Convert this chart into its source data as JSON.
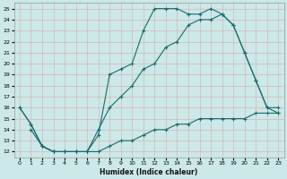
{
  "xlabel": "Humidex (Indice chaleur)",
  "bg_color": "#cce8e8",
  "grid_color": "#b8d8d8",
  "line_color": "#1a6b6b",
  "xlim": [
    -0.5,
    23.5
  ],
  "ylim": [
    11.5,
    25.5
  ],
  "yticks": [
    12,
    13,
    14,
    15,
    16,
    17,
    18,
    19,
    20,
    21,
    22,
    23,
    24,
    25
  ],
  "xticks": [
    0,
    1,
    2,
    3,
    4,
    5,
    6,
    7,
    8,
    9,
    10,
    11,
    12,
    13,
    14,
    15,
    16,
    17,
    18,
    19,
    20,
    21,
    22,
    23
  ],
  "line1_x": [
    0,
    1,
    2,
    3,
    4,
    5,
    6,
    7,
    8,
    9,
    10,
    11,
    12,
    13,
    14,
    15,
    16,
    17,
    18,
    19,
    20,
    21,
    22,
    23
  ],
  "line1_y": [
    16,
    14.5,
    12.5,
    12,
    12,
    12,
    12,
    13.5,
    19,
    19.5,
    20,
    23,
    25,
    25,
    25,
    24.5,
    24.5,
    25,
    24.5,
    23.5,
    21,
    18.5,
    16,
    16
  ],
  "line2_x": [
    0,
    1,
    2,
    3,
    4,
    5,
    6,
    7,
    8,
    9,
    10,
    11,
    12,
    13,
    14,
    15,
    16,
    17,
    18,
    19,
    20,
    21,
    22,
    23
  ],
  "line2_y": [
    16,
    14.5,
    12.5,
    12,
    12,
    12,
    12,
    14,
    16,
    17,
    18,
    19.5,
    20,
    21.5,
    22,
    23.5,
    24,
    24,
    24.5,
    23.5,
    21,
    18.5,
    16,
    15.5
  ],
  "line3_x": [
    1,
    2,
    3,
    4,
    5,
    6,
    7,
    8,
    9,
    10,
    11,
    12,
    13,
    14,
    15,
    16,
    17,
    18,
    19,
    20,
    21,
    22,
    23
  ],
  "line3_y": [
    14,
    12.5,
    12,
    12,
    12,
    12,
    12,
    12.5,
    13,
    13,
    13.5,
    14,
    14,
    14.5,
    14.5,
    15,
    15,
    15,
    15,
    15,
    15.5,
    15.5,
    15.5
  ]
}
